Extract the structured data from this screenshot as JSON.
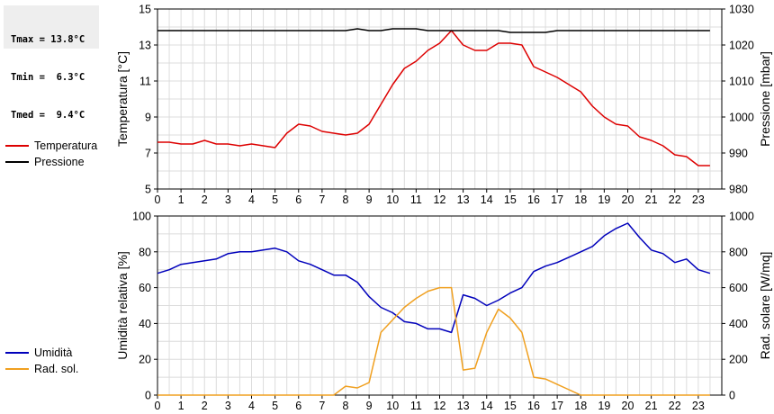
{
  "stats": {
    "tmax": "Tmax = 13.8°C",
    "tmin": "Tmin =  6.3°C",
    "tmed": "Tmed =  9.4°C"
  },
  "colors": {
    "temperatura": "#dd0000",
    "pressione": "#000000",
    "umidita": "#0000bb",
    "rad_sol": "#f0a020",
    "grid": "#dcdcdc"
  },
  "legend_top": [
    {
      "label": "Temperatura",
      "color_key": "temperatura"
    },
    {
      "label": "Pressione",
      "color_key": "pressione"
    }
  ],
  "legend_bottom": [
    {
      "label": "Umidità",
      "color_key": "umidita"
    },
    {
      "label": "Rad. sol.",
      "color_key": "rad_sol"
    }
  ],
  "chart_data": [
    {
      "type": "line",
      "x_ticks": [
        "0",
        "1",
        "2",
        "3",
        "4",
        "5",
        "6",
        "7",
        "8",
        "9",
        "10",
        "11",
        "12",
        "13",
        "14",
        "15",
        "16",
        "17",
        "18",
        "19",
        "20",
        "21",
        "22",
        "23"
      ],
      "xlim": [
        0,
        24
      ],
      "ylabel_left": "Temperatura [°C]",
      "ylim_left": [
        5,
        15
      ],
      "yticks_left": [
        "5",
        "7",
        "9",
        "11",
        "13",
        "15"
      ],
      "ylabel_right": "Pressione [mbar]",
      "ylim_right": [
        980,
        1030
      ],
      "yticks_right": [
        "980",
        "990",
        "1000",
        "1010",
        "1020",
        "1030"
      ],
      "grid": true,
      "series": [
        {
          "name": "Temperatura",
          "axis": "left",
          "color_key": "temperatura",
          "x": [
            0,
            0.5,
            1,
            1.5,
            2,
            2.5,
            3,
            3.5,
            4,
            4.5,
            5,
            5.5,
            6,
            6.5,
            7,
            7.5,
            8,
            8.5,
            9,
            9.5,
            10,
            10.5,
            11,
            11.5,
            12,
            12.5,
            13,
            13.5,
            14,
            14.5,
            15,
            15.5,
            16,
            16.5,
            17,
            17.5,
            18,
            18.5,
            19,
            19.5,
            20,
            20.5,
            21,
            21.5,
            22,
            22.5,
            23,
            23.5
          ],
          "y": [
            7.6,
            7.6,
            7.5,
            7.5,
            7.7,
            7.5,
            7.5,
            7.4,
            7.5,
            7.4,
            7.3,
            8.1,
            8.6,
            8.5,
            8.2,
            8.1,
            8.0,
            8.1,
            8.6,
            9.7,
            10.8,
            11.7,
            12.1,
            12.7,
            13.1,
            13.8,
            13.0,
            12.7,
            12.7,
            13.1,
            13.1,
            13.0,
            11.8,
            11.5,
            11.2,
            10.8,
            10.4,
            9.6,
            9.0,
            8.6,
            8.5,
            7.9,
            7.7,
            7.4,
            6.9,
            6.8,
            6.3,
            6.3
          ]
        },
        {
          "name": "Pressione",
          "axis": "right",
          "color_key": "pressione",
          "x": [
            0,
            0.5,
            1,
            1.5,
            2,
            2.5,
            3,
            3.5,
            4,
            4.5,
            5,
            5.5,
            6,
            6.5,
            7,
            7.5,
            8,
            8.5,
            9,
            9.5,
            10,
            10.5,
            11,
            11.5,
            12,
            12.5,
            13,
            13.5,
            14,
            14.5,
            15,
            15.5,
            16,
            16.5,
            17,
            17.5,
            18,
            18.5,
            19,
            19.5,
            20,
            20.5,
            21,
            21.5,
            22,
            22.5,
            23,
            23.5
          ],
          "y": [
            1024,
            1024,
            1024,
            1024,
            1024,
            1024,
            1024,
            1024,
            1024,
            1024,
            1024,
            1024,
            1024,
            1024,
            1024,
            1024,
            1024,
            1024.5,
            1024,
            1024,
            1024.5,
            1024.5,
            1024.5,
            1024,
            1024,
            1024,
            1024,
            1024,
            1024,
            1024,
            1023.5,
            1023.5,
            1023.5,
            1023.5,
            1024,
            1024,
            1024,
            1024,
            1024,
            1024,
            1024,
            1024,
            1024,
            1024,
            1024,
            1024,
            1024,
            1024
          ]
        }
      ]
    },
    {
      "type": "line",
      "x_ticks": [
        "0",
        "1",
        "2",
        "3",
        "4",
        "5",
        "6",
        "7",
        "8",
        "9",
        "10",
        "11",
        "12",
        "13",
        "14",
        "15",
        "16",
        "17",
        "18",
        "19",
        "20",
        "21",
        "22",
        "23"
      ],
      "xlim": [
        0,
        24
      ],
      "ylabel_left": "Umidità relativa [%]",
      "ylim_left": [
        0,
        100
      ],
      "yticks_left": [
        "0",
        "20",
        "40",
        "60",
        "80",
        "100"
      ],
      "ylabel_right": "Rad. solare [W/mq]",
      "ylim_right": [
        0,
        1000
      ],
      "yticks_right": [
        "0",
        "200",
        "400",
        "600",
        "800",
        "1000"
      ],
      "grid": true,
      "series": [
        {
          "name": "Umidità",
          "axis": "left",
          "color_key": "umidita",
          "x": [
            0,
            0.5,
            1,
            1.5,
            2,
            2.5,
            3,
            3.5,
            4,
            4.5,
            5,
            5.5,
            6,
            6.5,
            7,
            7.5,
            8,
            8.5,
            9,
            9.5,
            10,
            10.5,
            11,
            11.5,
            12,
            12.5,
            13,
            13.5,
            14,
            14.5,
            15,
            15.5,
            16,
            16.5,
            17,
            17.5,
            18,
            18.5,
            19,
            19.5,
            20,
            20.5,
            21,
            21.5,
            22,
            22.5,
            23,
            23.5
          ],
          "y": [
            68,
            70,
            73,
            74,
            75,
            76,
            79,
            80,
            80,
            81,
            82,
            80,
            75,
            73,
            70,
            67,
            67,
            63,
            55,
            49,
            46,
            41,
            40,
            37,
            37,
            35,
            56,
            54,
            50,
            53,
            57,
            60,
            69,
            72,
            74,
            77,
            80,
            83,
            89,
            93,
            96,
            88,
            81,
            79,
            74,
            76,
            70,
            68
          ]
        },
        {
          "name": "Rad. sol.",
          "axis": "right",
          "color_key": "rad_sol",
          "x": [
            0,
            0.5,
            1,
            1.5,
            2,
            2.5,
            3,
            3.5,
            4,
            4.5,
            5,
            5.5,
            6,
            6.5,
            7,
            7.5,
            8,
            8.5,
            9,
            9.5,
            10,
            10.5,
            11,
            11.5,
            12,
            12.5,
            13,
            13.5,
            14,
            14.5,
            15,
            15.5,
            16,
            16.5,
            17,
            17.5,
            18,
            18.5,
            19,
            19.5,
            20,
            20.5,
            21,
            21.5,
            22,
            22.5,
            23,
            23.5
          ],
          "y": [
            0,
            0,
            0,
            0,
            0,
            0,
            0,
            0,
            0,
            0,
            0,
            0,
            0,
            0,
            0,
            0,
            50,
            40,
            70,
            350,
            420,
            490,
            540,
            580,
            600,
            600,
            140,
            150,
            350,
            480,
            430,
            350,
            100,
            90,
            60,
            30,
            0,
            0,
            0,
            0,
            0,
            0,
            0,
            0,
            0,
            0,
            0,
            0
          ]
        }
      ]
    }
  ]
}
